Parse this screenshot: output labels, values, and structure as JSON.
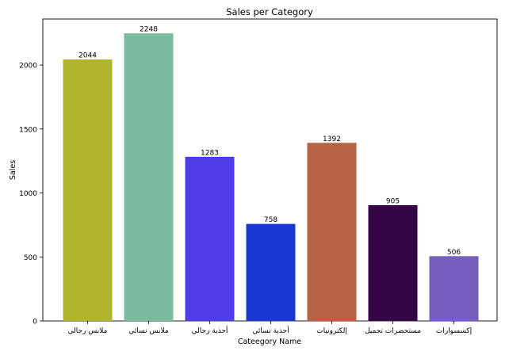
{
  "chart_data": {
    "type": "bar",
    "title": "Sales per Category",
    "xlabel": "Cateegory Name",
    "ylabel": "Sales",
    "categories": [
      "ملابس رجالي",
      "ملابس نسائي",
      "أحذية رجالي",
      "أحذية نسائي",
      "إلكترونيات",
      "مستحضرات تجميل",
      "إكسسوارات"
    ],
    "values": [
      2044,
      2248,
      1283,
      758,
      1392,
      905,
      506
    ],
    "colors": [
      "#b0b52c",
      "#7dbba0",
      "#4e3de6",
      "#1a37d2",
      "#b96243",
      "#330646",
      "#765ebf"
    ],
    "y_ticks": [
      0,
      500,
      1000,
      1500,
      2000
    ],
    "ylim": [
      0,
      2360
    ],
    "grid": false,
    "legend": "none"
  }
}
